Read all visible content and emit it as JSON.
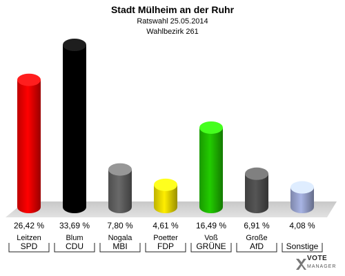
{
  "header": {
    "title": "Stadt Mülheim an der Ruhr",
    "subtitle": "Ratswahl 25.05.2014",
    "district": "Wahlbezirk 261"
  },
  "logo": {
    "line1": "VOTE",
    "line2": "MANAGER"
  },
  "chart_data": {
    "type": "bar",
    "title": "Stadt Mülheim an der Ruhr",
    "subtitle": "Ratswahl 25.05.2014 — Wahlbezirk 261",
    "categories": [
      "SPD",
      "CDU",
      "MBI",
      "FDP",
      "GRÜNE",
      "AfD",
      "Sonstige"
    ],
    "candidates": [
      "Leitzen",
      "Blum",
      "Nogala",
      "Poetter",
      "Voß",
      "Große",
      ""
    ],
    "values": [
      26.42,
      33.69,
      7.8,
      4.61,
      16.49,
      6.91,
      4.08
    ],
    "value_labels": [
      "26,42 %",
      "33,69 %",
      "7,80 %",
      "4,61 %",
      "16,49 %",
      "6,91 %",
      "4,08 %"
    ],
    "colors": [
      "#ff0000",
      "#000000",
      "#696969",
      "#ffee00",
      "#22cc00",
      "#555555",
      "#a8b4e4"
    ],
    "unit": "%",
    "ylim": [
      0,
      33.69
    ],
    "grid": false,
    "legend": "none"
  }
}
